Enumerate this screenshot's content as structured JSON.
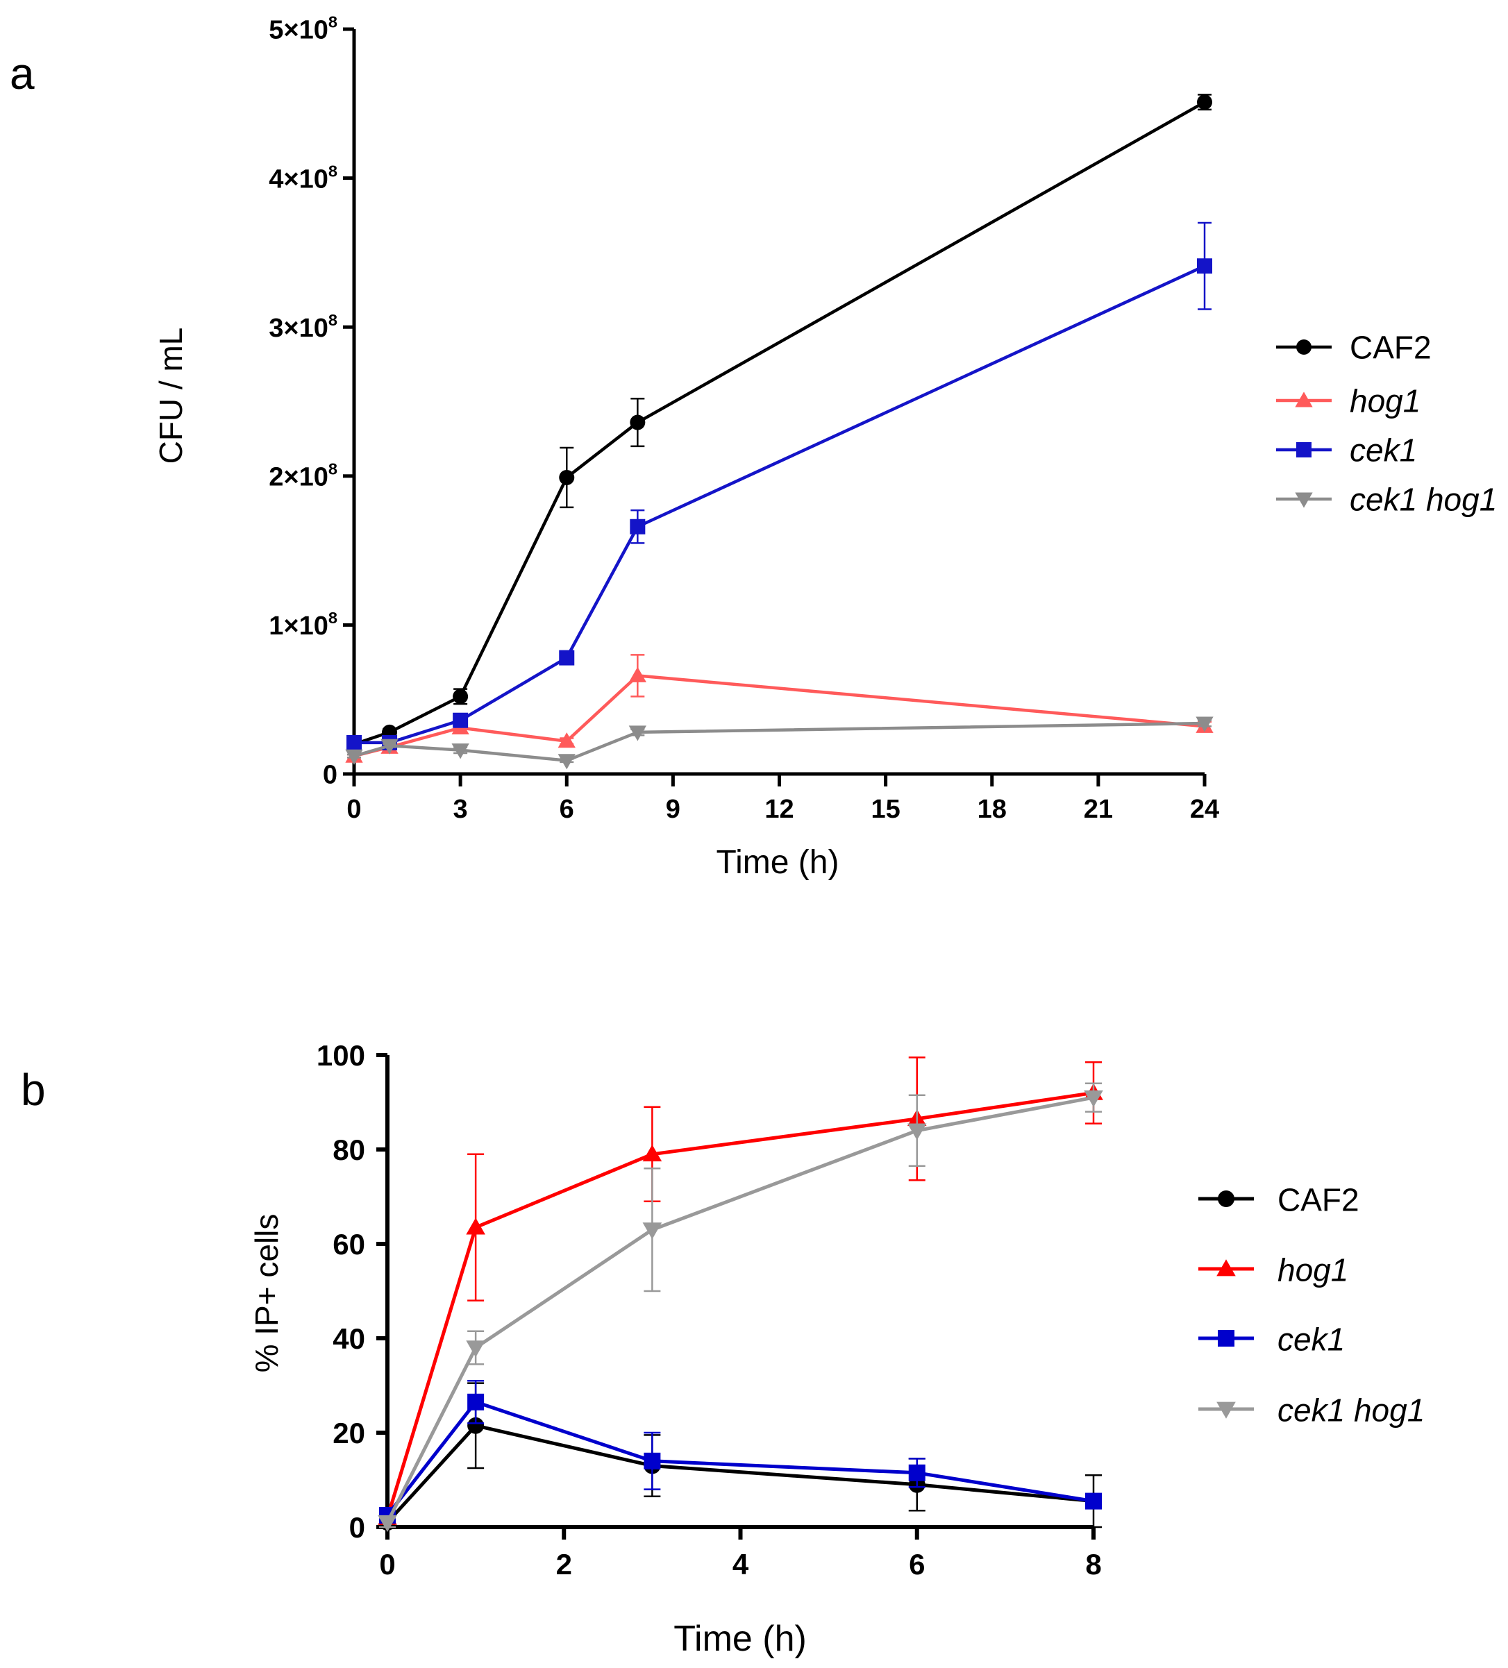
{
  "chart_data": [
    {
      "panel_label": "a",
      "type": "line",
      "xlabel": "Time (h)",
      "ylabel": "CFU / mL",
      "xlim": [
        0,
        24
      ],
      "ylim": [
        0,
        500000000
      ],
      "xticks": [
        0,
        3,
        6,
        9,
        12,
        15,
        18,
        21,
        24
      ],
      "yticks": [
        {
          "value": 0,
          "mantissa": "0",
          "exp": ""
        },
        {
          "value": 100000000,
          "mantissa": "1×10",
          "exp": "8"
        },
        {
          "value": 200000000,
          "mantissa": "2×10",
          "exp": "8"
        },
        {
          "value": 300000000,
          "mantissa": "3×10",
          "exp": "8"
        },
        {
          "value": 400000000,
          "mantissa": "4×10",
          "exp": "8"
        },
        {
          "value": 500000000,
          "mantissa": "5×10",
          "exp": "8"
        }
      ],
      "legend_position": "right",
      "series": [
        {
          "name": "CAF2",
          "italic": false,
          "color": "#000000",
          "marker": "circle",
          "x": [
            0,
            1,
            3,
            6,
            8,
            24
          ],
          "y": [
            20000000,
            28000000,
            52000000,
            199000000,
            236000000,
            451000000
          ],
          "err": [
            2000000,
            2000000,
            5000000,
            20000000,
            16000000,
            5000000
          ]
        },
        {
          "name": "hog1",
          "italic": true,
          "color": "#ff5a5a",
          "marker": "triangle-up",
          "x": [
            0,
            1,
            3,
            6,
            8,
            24
          ],
          "y": [
            12000000,
            18000000,
            31000000,
            22000000,
            66000000,
            32000000
          ],
          "err": [
            1000000,
            1000000,
            3000000,
            2000000,
            14000000,
            3000000
          ]
        },
        {
          "name": "cek1",
          "italic": true,
          "color": "#1414c8",
          "marker": "square",
          "x": [
            0,
            1,
            3,
            6,
            8,
            24
          ],
          "y": [
            21000000,
            21000000,
            36000000,
            78000000,
            166000000,
            341000000
          ],
          "err": [
            1000000,
            1000000,
            3000000,
            3000000,
            11000000,
            29000000
          ]
        },
        {
          "name": "cek1 hog1",
          "italic": true,
          "color": "#8c8c8c",
          "marker": "triangle-down",
          "x": [
            0,
            1,
            3,
            6,
            8,
            24
          ],
          "y": [
            12000000,
            19000000,
            16000000,
            9000000,
            28000000,
            34000000
          ],
          "err": [
            1000000,
            1000000,
            2000000,
            1000000,
            2000000,
            2000000
          ]
        }
      ]
    },
    {
      "panel_label": "b",
      "type": "line",
      "xlabel": "Time (h)",
      "ylabel": "% IP+ cells",
      "xlim": [
        0,
        8
      ],
      "ylim": [
        0,
        100
      ],
      "xticks": [
        0,
        2,
        4,
        6,
        8
      ],
      "yticks": [
        {
          "value": 0,
          "mantissa": "0",
          "exp": ""
        },
        {
          "value": 20,
          "mantissa": "20",
          "exp": ""
        },
        {
          "value": 40,
          "mantissa": "40",
          "exp": ""
        },
        {
          "value": 60,
          "mantissa": "60",
          "exp": ""
        },
        {
          "value": 80,
          "mantissa": "80",
          "exp": ""
        },
        {
          "value": 100,
          "mantissa": "100",
          "exp": ""
        }
      ],
      "legend_position": "right",
      "series": [
        {
          "name": "CAF2",
          "italic": false,
          "color": "#000000",
          "marker": "circle",
          "x": [
            0,
            1,
            3,
            6,
            8
          ],
          "y": [
            1,
            21.5,
            13,
            9,
            5.5
          ],
          "err": [
            1,
            9,
            6.5,
            5.5,
            5.5
          ]
        },
        {
          "name": "hog1",
          "italic": true,
          "color": "#ff0000",
          "marker": "triangle-up",
          "x": [
            0,
            1,
            3,
            6,
            8
          ],
          "y": [
            2,
            63.5,
            79,
            86.5,
            92
          ],
          "err": [
            1,
            15.5,
            10,
            13,
            6.5
          ]
        },
        {
          "name": "cek1",
          "italic": true,
          "color": "#0000cc",
          "marker": "square",
          "x": [
            0,
            1,
            3,
            6,
            8
          ],
          "y": [
            2.5,
            26.5,
            14,
            11.5,
            5.5
          ],
          "err": [
            1,
            4.5,
            6,
            3,
            1
          ]
        },
        {
          "name": "cek1 hog1",
          "italic": true,
          "color": "#999999",
          "marker": "triangle-down",
          "x": [
            0,
            1,
            3,
            6,
            8
          ],
          "y": [
            1,
            38,
            63,
            84,
            91
          ],
          "err": [
            1,
            3.5,
            13,
            7.5,
            3
          ]
        }
      ]
    }
  ]
}
